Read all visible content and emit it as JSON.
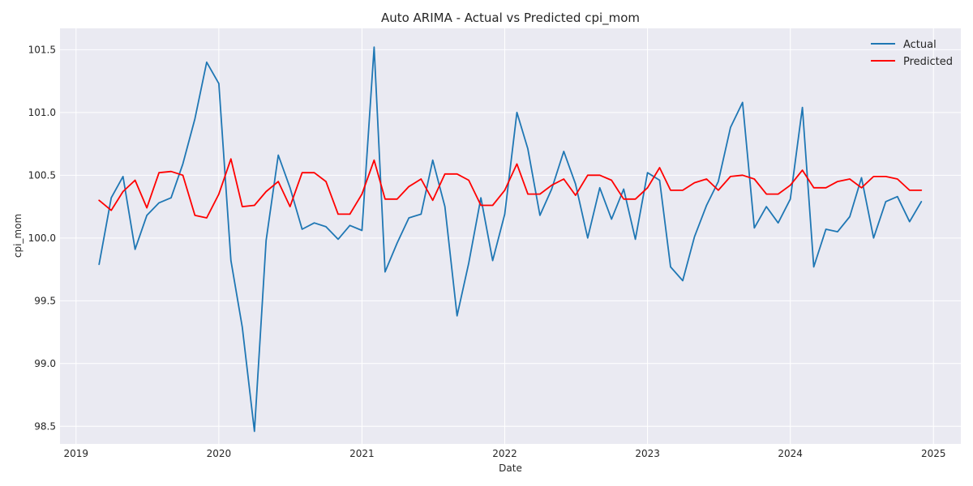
{
  "chart_data": {
    "type": "line",
    "title": "Auto ARIMA - Actual vs Predicted cpi_mom",
    "xlabel": "Date",
    "ylabel": "cpi_mom",
    "xlim": [
      "2018-11-21",
      "2025-03-12"
    ],
    "ylim": [
      98.36,
      101.67
    ],
    "x_ticks": [
      "2019",
      "2020",
      "2021",
      "2022",
      "2023",
      "2024",
      "2025"
    ],
    "y_ticks": [
      "98.5",
      "99.0",
      "99.5",
      "100.0",
      "100.5",
      "101.0",
      "101.5"
    ],
    "grid": true,
    "legend_position": "top-right",
    "x": [
      "2019-03",
      "2019-04",
      "2019-05",
      "2019-06",
      "2019-07",
      "2019-08",
      "2019-09",
      "2019-10",
      "2019-11",
      "2019-12",
      "2020-01",
      "2020-02",
      "2020-03",
      "2020-04",
      "2020-05",
      "2020-06",
      "2020-07",
      "2020-08",
      "2020-09",
      "2020-10",
      "2020-11",
      "2020-12",
      "2021-01",
      "2021-02",
      "2021-03",
      "2021-04",
      "2021-05",
      "2021-06",
      "2021-07",
      "2021-08",
      "2021-09",
      "2021-10",
      "2021-11",
      "2021-12",
      "2022-01",
      "2022-02",
      "2022-03",
      "2022-04",
      "2022-05",
      "2022-06",
      "2022-07",
      "2022-08",
      "2022-09",
      "2022-10",
      "2022-11",
      "2022-12",
      "2023-01",
      "2023-02",
      "2023-03",
      "2023-04",
      "2023-05",
      "2023-06",
      "2023-07",
      "2023-08",
      "2023-09",
      "2023-10",
      "2023-11",
      "2023-12",
      "2024-01",
      "2024-02",
      "2024-03",
      "2024-04",
      "2024-05",
      "2024-06",
      "2024-07",
      "2024-08",
      "2024-09",
      "2024-10",
      "2024-11",
      "2024-12"
    ],
    "series": [
      {
        "name": "Actual",
        "color": "#1f77b4",
        "values": [
          99.79,
          100.32,
          100.49,
          99.91,
          100.18,
          100.28,
          100.32,
          100.59,
          100.95,
          101.4,
          101.23,
          99.82,
          99.29,
          98.46,
          99.98,
          100.66,
          100.4,
          100.07,
          100.12,
          100.09,
          99.99,
          100.1,
          100.06,
          101.52,
          99.73,
          99.96,
          100.16,
          100.19,
          100.62,
          100.25,
          99.38,
          99.8,
          100.32,
          99.82,
          100.19,
          101.0,
          100.71,
          100.18,
          100.39,
          100.69,
          100.43,
          100.0,
          100.4,
          100.15,
          100.39,
          99.99,
          100.52,
          100.46,
          99.77,
          99.66,
          100.01,
          100.26,
          100.45,
          100.88,
          101.08,
          100.08,
          100.25,
          100.12,
          100.31,
          101.04,
          99.77,
          100.07,
          100.05,
          100.17,
          100.48,
          100.0,
          100.29,
          100.33,
          100.13,
          100.29
        ]
      },
      {
        "name": "Predicted",
        "color": "#ff0000",
        "values": [
          100.3,
          100.22,
          100.37,
          100.46,
          100.24,
          100.52,
          100.53,
          100.5,
          100.18,
          100.16,
          100.35,
          100.63,
          100.25,
          100.26,
          100.37,
          100.45,
          100.25,
          100.52,
          100.52,
          100.45,
          100.19,
          100.19,
          100.35,
          100.62,
          100.31,
          100.31,
          100.41,
          100.47,
          100.3,
          100.51,
          100.51,
          100.46,
          100.26,
          100.26,
          100.38,
          100.59,
          100.35,
          100.35,
          100.42,
          100.47,
          100.34,
          100.5,
          100.5,
          100.46,
          100.31,
          100.31,
          100.4,
          100.56,
          100.38,
          100.38,
          100.44,
          100.47,
          100.38,
          100.49,
          100.5,
          100.47,
          100.35,
          100.35,
          100.42,
          100.54,
          100.4,
          100.4,
          100.45,
          100.47,
          100.4,
          100.49,
          100.49,
          100.47,
          100.38,
          100.38
        ]
      }
    ]
  }
}
